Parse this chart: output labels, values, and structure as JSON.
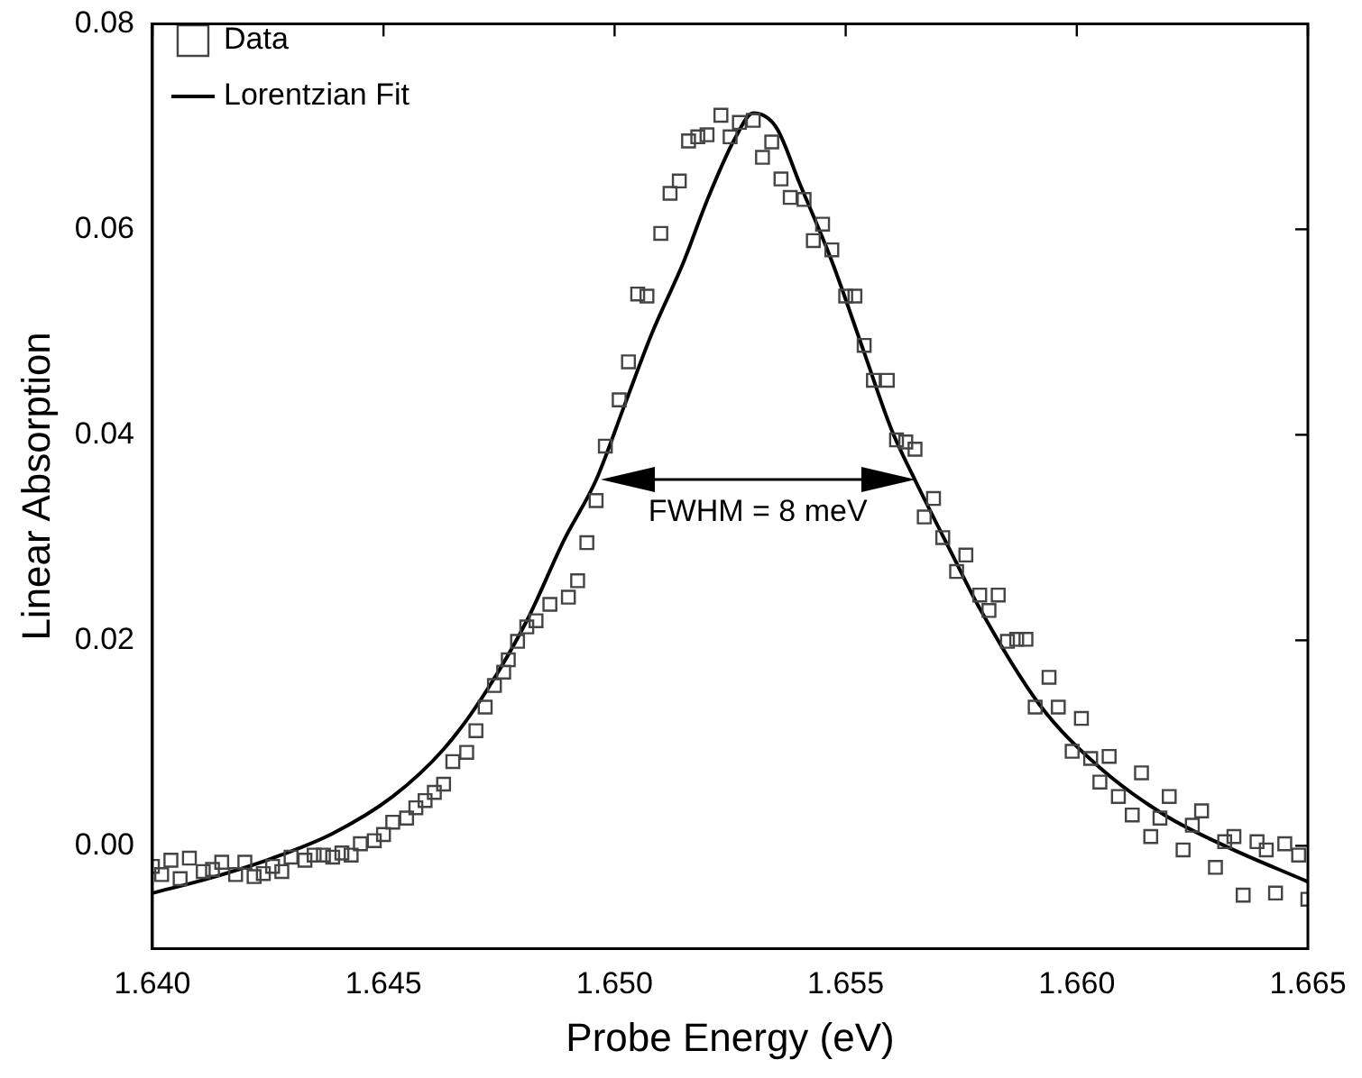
{
  "chart_data": {
    "type": "scatter",
    "xlabel": "Probe Energy (eV)",
    "ylabel": "Linear Absorption",
    "xlim": [
      1.64,
      1.665
    ],
    "xticks": [
      {
        "value": 1.64,
        "label": "1.640"
      },
      {
        "value": 1.645,
        "label": "1.645"
      },
      {
        "value": 1.65,
        "label": "1.650"
      },
      {
        "value": 1.655,
        "label": "1.655"
      },
      {
        "value": 1.66,
        "label": "1.660"
      },
      {
        "value": 1.665,
        "label": "1.665"
      }
    ],
    "ylim": [
      -0.01,
      0.08
    ],
    "yticks": [
      {
        "value": 0,
        "label": "0.00"
      },
      {
        "value": 0.02,
        "label": "0.02"
      },
      {
        "value": 0.04,
        "label": "0.04"
      },
      {
        "value": 0.06,
        "label": "0.06"
      },
      {
        "value": 0.08,
        "label": "0.08"
      }
    ],
    "legend": "top left",
    "grid": false,
    "annotations": [
      "FWHM = 8 meV"
    ],
    "series": [
      {
        "name": "Data",
        "type": "scatter",
        "marker": "square",
        "color": "#444444",
        "x": [
          1.64,
          1.6402,
          1.6404,
          1.6406,
          1.6408,
          1.6411,
          1.6413,
          1.6415,
          1.6418,
          1.642,
          1.6422,
          1.6424,
          1.6426,
          1.6428,
          1.643,
          1.6433,
          1.6435,
          1.6437,
          1.6439,
          1.6441,
          1.6443,
          1.6445,
          1.6448,
          1.645,
          1.6452,
          1.6455,
          1.6457,
          1.6459,
          1.6461,
          1.6463,
          1.6465,
          1.6468,
          1.647,
          1.6472,
          1.6474,
          1.6476,
          1.6477,
          1.6479,
          1.6481,
          1.6483,
          1.6486,
          1.649,
          1.6492,
          1.6494,
          1.6496,
          1.6498,
          1.6501,
          1.6503,
          1.6505,
          1.6507,
          1.651,
          1.6512,
          1.6514,
          1.6516,
          1.6518,
          1.652,
          1.6523,
          1.6525,
          1.6527,
          1.653,
          1.6532,
          1.6534,
          1.6536,
          1.6538,
          1.6541,
          1.6543,
          1.6545,
          1.6547,
          1.655,
          1.6552,
          1.6554,
          1.6556,
          1.6559,
          1.6561,
          1.6563,
          1.6565,
          1.6567,
          1.6569,
          1.6571,
          1.6574,
          1.6576,
          1.6579,
          1.6581,
          1.6583,
          1.6585,
          1.6587,
          1.6589,
          1.6591,
          1.6594,
          1.6596,
          1.6599,
          1.6601,
          1.6603,
          1.6605,
          1.6607,
          1.6609,
          1.6612,
          1.6614,
          1.6616,
          1.6618,
          1.662,
          1.6623,
          1.6625,
          1.6627,
          1.663,
          1.6632,
          1.6634,
          1.6636,
          1.6639,
          1.6641,
          1.6643,
          1.6645,
          1.6648,
          1.665
        ],
        "values": [
          -0.002,
          -0.0028,
          -0.0014,
          -0.0032,
          -0.0012,
          -0.0025,
          -0.0023,
          -0.0016,
          -0.0028,
          -0.0016,
          -0.003,
          -0.0027,
          -0.002,
          -0.0025,
          -0.0011,
          -0.0014,
          -0.0009,
          -0.0009,
          -0.0011,
          -0.0007,
          -0.0009,
          0.0002,
          0.0005,
          0.0011,
          0.0023,
          0.0027,
          0.0037,
          0.0044,
          0.0052,
          0.006,
          0.0082,
          0.0091,
          0.0112,
          0.0135,
          0.0156,
          0.0169,
          0.0181,
          0.0199,
          0.0213,
          0.0219,
          0.0235,
          0.0242,
          0.0258,
          0.0295,
          0.0336,
          0.0389,
          0.0434,
          0.0471,
          0.0537,
          0.0535,
          0.0596,
          0.0635,
          0.0647,
          0.0686,
          0.069,
          0.0692,
          0.0711,
          0.069,
          0.0704,
          0.0706,
          0.067,
          0.0685,
          0.0649,
          0.0631,
          0.0629,
          0.0589,
          0.0605,
          0.058,
          0.0535,
          0.0535,
          0.0487,
          0.0453,
          0.0453,
          0.0395,
          0.0393,
          0.0386,
          0.032,
          0.0338,
          0.03,
          0.0267,
          0.0283,
          0.0244,
          0.0229,
          0.0244,
          0.0199,
          0.0201,
          0.0201,
          0.0135,
          0.0164,
          0.0135,
          0.0092,
          0.0124,
          0.0085,
          0.0062,
          0.0087,
          0.0048,
          0.003,
          0.0071,
          0.0009,
          0.0027,
          0.0048,
          -0.0004,
          0.002,
          0.0034,
          -0.0021,
          0.0004,
          0.0009,
          -0.0048,
          0.0004,
          -0.0004,
          -0.0046,
          0.0002,
          -0.0009,
          -0.0052
        ]
      },
      {
        "name": "Lorentzian Fit",
        "type": "line",
        "marker": "none",
        "line_style": "solid",
        "color": "#000000",
        "x": [
          1.64,
          1.6412,
          1.6426,
          1.6439,
          1.6452,
          1.6463,
          1.6471,
          1.6481,
          1.6489,
          1.6496,
          1.6502,
          1.6508,
          1.6515,
          1.652,
          1.6526,
          1.653,
          1.6535,
          1.654,
          1.6547,
          1.6554,
          1.656,
          1.6565,
          1.6573,
          1.6579,
          1.6592,
          1.6605,
          1.6619,
          1.6632,
          1.665
        ],
        "values": [
          -0.0046,
          -0.0032,
          -0.0012,
          0.0012,
          0.0048,
          0.0094,
          0.0142,
          0.0219,
          0.0297,
          0.0356,
          0.0427,
          0.0498,
          0.0569,
          0.0628,
          0.0688,
          0.0713,
          0.0699,
          0.0645,
          0.0569,
          0.048,
          0.0404,
          0.0356,
          0.0284,
          0.0231,
          0.0137,
          0.0076,
          0.003,
          0.0,
          -0.0035
        ]
      }
    ]
  }
}
